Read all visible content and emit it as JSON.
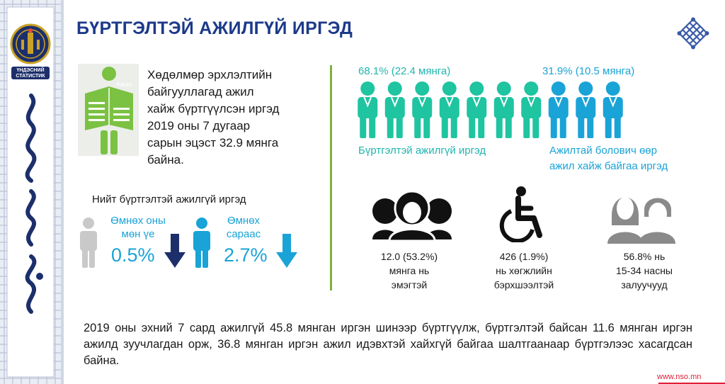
{
  "sidebar": {
    "logo_text": "ҮНДЭСНИЙ СТАТИСТИК",
    "colors": {
      "navy": "#1c2f6b",
      "gold": "#c9a227",
      "frame": "#cfd6e4"
    }
  },
  "header": {
    "title": "БҮРТГЭЛТЭЙ АЖИЛГҮЙ ИРГЭД",
    "title_color": "#1c3a8a",
    "ornament_icon": "endless-knot-icon"
  },
  "intro": {
    "icon": "newspaper-reader-icon",
    "icon_label": "Ажил",
    "lines": [
      "Хөдөлмөр эрхлэлтийн",
      "байгууллагад ажил",
      "хайж бүртгүүлсэн иргэд",
      "2019 оны 7 дугаар",
      "сарын эцэст 32.9 мянга",
      "байна."
    ]
  },
  "comparison": {
    "title": "Нийт бүртгэлтэй ажилгүй иргэд",
    "items": [
      {
        "label_line1": "Өмнөх оны",
        "label_line2": "мөн үе",
        "value": "0.5%",
        "direction": "down",
        "icon": "person-icon"
      },
      {
        "label_line1": "Өмнөх",
        "label_line2": "сараас",
        "value": "2.7%",
        "direction": "down",
        "icon": "person-icon"
      }
    ]
  },
  "people_split": {
    "left_pct": "68.1% (22.4 мянга)",
    "right_pct": "31.9% (10.5 мянга)",
    "left_caption": "Бүртгэлтэй ажилгүй иргэд",
    "right_caption_line1": "Ажилтай болович өөр",
    "right_caption_line2": "ажил хайж байгаа иргэд",
    "left_count": 7,
    "right_count": 3,
    "colors": {
      "left": "#1fc4a0",
      "right": "#1aa3d6"
    }
  },
  "stats": [
    {
      "icon": "women-group-icon",
      "line1": "12.0 (53.2%)",
      "line2": "мянга нь",
      "line3": "эмэгтэй"
    },
    {
      "icon": "wheelchair-icon",
      "line1": "426 (1.9%)",
      "line2": "нь хөгжлийн",
      "line3": "бэрхшээлтэй"
    },
    {
      "icon": "youth-pair-icon",
      "line1": "56.8% нь",
      "line2": "15-34 насны",
      "line3": "залуучууд"
    }
  ],
  "summary": "2019 оны эхний 7 сард ажилгүй 45.8 мянган иргэн шинээр бүртгүүлж, бүртгэлтэй байсан 11.6 мянган иргэн ажилд зуучлагдан орж, 36.8 мянган иргэн ажил идэвхтэй хайхгүй байгаа шалтгаанаар бүртгэлээс хасагдсан байна.",
  "footer": {
    "url": "www.nso.mn"
  }
}
